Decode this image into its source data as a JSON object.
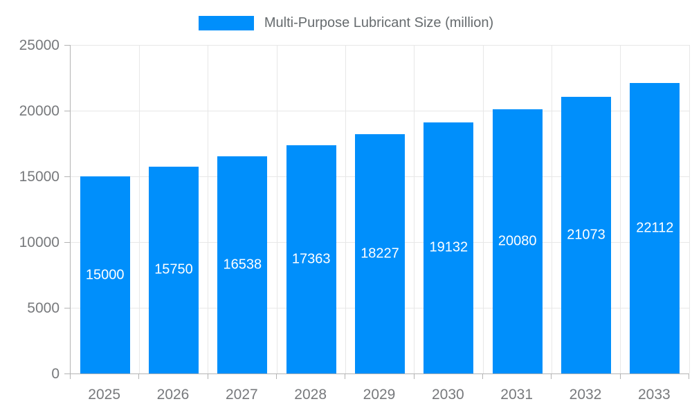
{
  "chart_data": {
    "type": "bar",
    "series_name": "Multi-Purpose Lubricant Size (million)",
    "categories": [
      "2025",
      "2026",
      "2027",
      "2028",
      "2029",
      "2030",
      "2031",
      "2032",
      "2033"
    ],
    "values": [
      15000,
      15750,
      16538,
      17363,
      18227,
      19132,
      20080,
      21073,
      22112
    ],
    "title": "",
    "xlabel": "",
    "ylabel": "",
    "ylim": [
      0,
      25000
    ],
    "yticks": [
      0,
      5000,
      10000,
      15000,
      20000,
      25000
    ],
    "grid": true,
    "legend_position": "top",
    "value_labels": "inside-center",
    "colors": {
      "bar": "#008FFB",
      "grid": "#e7e7e7",
      "axis": "#b3b3b3",
      "axis_label": "#77797c",
      "legend_label": "#666b6e",
      "value_label": "#ffffff",
      "background": "#ffffff"
    }
  }
}
